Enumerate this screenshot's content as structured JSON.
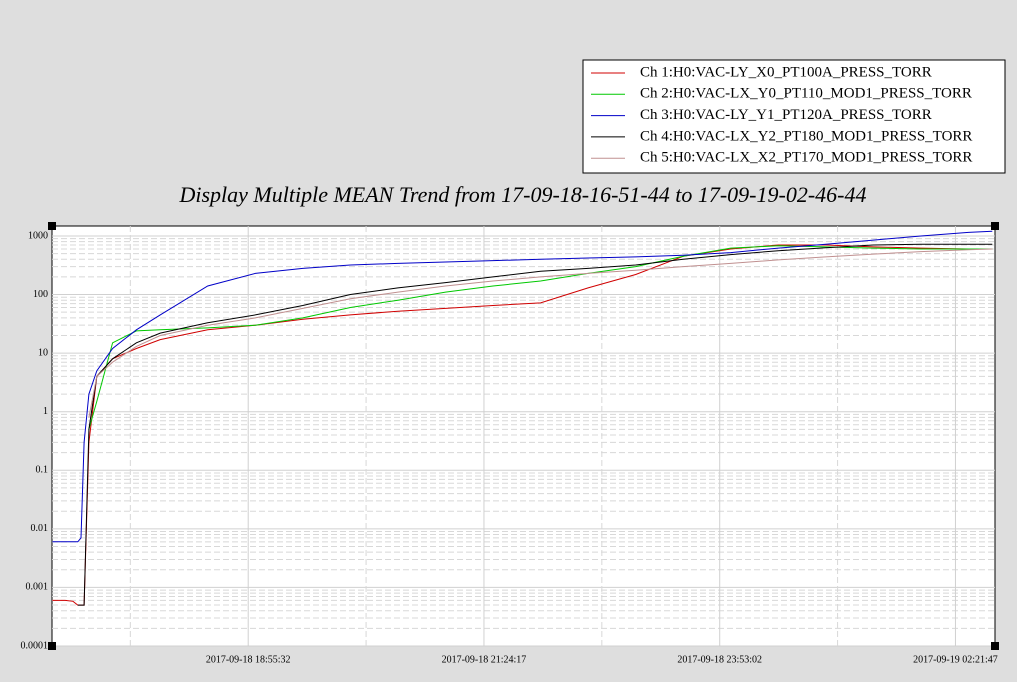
{
  "chart_data": {
    "type": "line",
    "title": "Display Multiple MEAN Trend from 17-09-18-16-51-44 to 17-09-19-02-46-44",
    "x": [
      "2017-09-18 16:52:00",
      "2017-09-18 17:00:00",
      "2017-09-18 17:05:00",
      "2017-09-18 17:08:00",
      "2017-09-18 17:10:00",
      "2017-09-18 17:12:00",
      "2017-09-18 17:15:00",
      "2017-09-18 17:20:00",
      "2017-09-18 17:30:00",
      "2017-09-18 17:45:00",
      "2017-09-18 18:00:00",
      "2017-09-18 18:30:00",
      "2017-09-18 19:00:00",
      "2017-09-18 19:30:00",
      "2017-09-18 20:00:00",
      "2017-09-18 20:30:00",
      "2017-09-18 21:00:00",
      "2017-09-18 21:30:00",
      "2017-09-18 22:00:00",
      "2017-09-18 22:30:00",
      "2017-09-18 23:00:00",
      "2017-09-18 23:30:00",
      "2017-09-19 00:00:00",
      "2017-09-19 00:30:00",
      "2017-09-19 01:00:00",
      "2017-09-19 01:30:00",
      "2017-09-19 02:00:00",
      "2017-09-19 02:30:00",
      "2017-09-19 02:45:00"
    ],
    "series": [
      {
        "name": "Ch 1:H0:VAC-LY_X0_PT100A_PRESS_TORR",
        "color": "#d00000",
        "values": [
          0.0006,
          0.0006,
          0.00058,
          0.0005,
          0.0005,
          0.0005,
          0.3,
          4,
          8,
          12,
          17,
          25,
          30,
          38,
          45,
          52,
          58,
          65,
          72,
          130,
          220,
          450,
          600,
          700,
          700,
          650,
          620,
          600,
          600
        ]
      },
      {
        "name": "Ch 2:H0:VAC-LX_Y0_PT110_MOD1_PRESS_TORR",
        "color": "#00c800",
        "values": [
          null,
          null,
          null,
          null,
          null,
          null,
          0.5,
          1.5,
          15,
          24,
          25,
          27,
          30,
          40,
          60,
          80,
          110,
          140,
          170,
          230,
          300,
          450,
          620,
          680,
          650,
          620,
          600,
          600,
          600
        ]
      },
      {
        "name": "Ch 3:H0:VAC-LY_Y1_PT120A_PRESS_TORR",
        "color": "#0000c8",
        "values": [
          0.006,
          0.006,
          0.006,
          0.006,
          0.007,
          0.3,
          2,
          5,
          12,
          25,
          45,
          140,
          230,
          280,
          320,
          340,
          360,
          380,
          400,
          420,
          440,
          470,
          520,
          620,
          720,
          850,
          1000,
          1150,
          1200
        ]
      },
      {
        "name": "Ch 4:H0:VAC-LX_Y2_PT180_MOD1_PRESS_TORR",
        "color": "#000000",
        "values": [
          null,
          null,
          null,
          0.0005,
          0.0005,
          0.0005,
          0.5,
          4,
          8,
          15,
          22,
          33,
          45,
          65,
          100,
          130,
          160,
          200,
          250,
          280,
          320,
          400,
          480,
          560,
          630,
          700,
          720,
          720,
          720
        ]
      },
      {
        "name": "Ch 5:H0:VAC-LX_X2_PT170_MOD1_PRESS_TORR",
        "color": "#c09090",
        "values": [
          null,
          null,
          null,
          null,
          null,
          null,
          0.8,
          4,
          7,
          13,
          20,
          30,
          40,
          58,
          85,
          110,
          140,
          170,
          200,
          230,
          260,
          300,
          340,
          390,
          440,
          490,
          540,
          580,
          600
        ]
      }
    ],
    "xlim": [
      "2017-09-18 16:51:44",
      "2017-09-19 02:46:44"
    ],
    "xticks": [
      "2017-09-18 18:55:32",
      "2017-09-18 21:24:17",
      "2017-09-18 23:53:02",
      "2017-09-19 02:21:47"
    ],
    "ylim": [
      0.0001,
      1480
    ],
    "yticks": [
      0.0001,
      0.001,
      0.01,
      0.1,
      1,
      10,
      100,
      1000
    ],
    "log_y": true,
    "grid": true,
    "legend": "top-right"
  }
}
